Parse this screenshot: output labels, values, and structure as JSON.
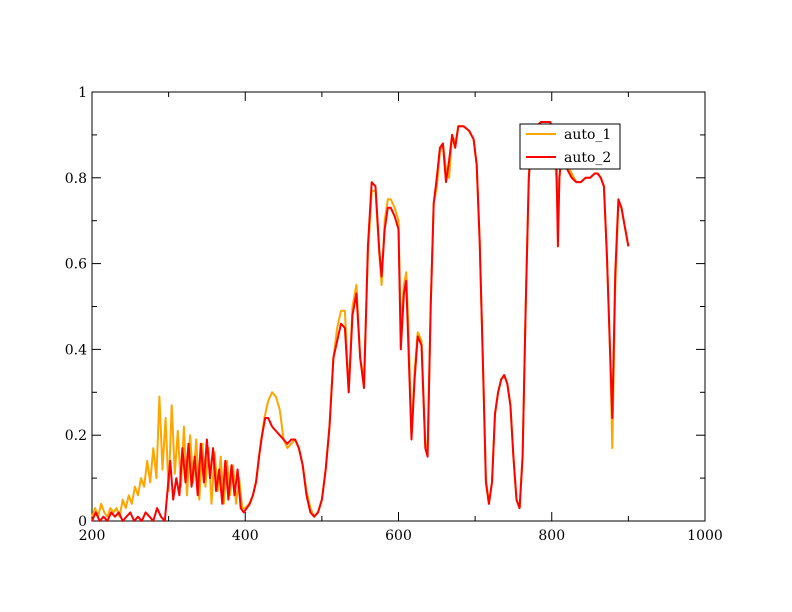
{
  "chart_data": {
    "type": "line",
    "title": "",
    "xlabel": "",
    "ylabel": "",
    "xlim": [
      200,
      1000
    ],
    "ylim": [
      0,
      1
    ],
    "x_ticks": [
      200,
      400,
      600,
      800,
      1000
    ],
    "x_tick_labels": [
      "200",
      "400",
      "600",
      "800",
      "1000"
    ],
    "y_ticks": [
      0,
      0.2,
      0.4,
      0.6,
      0.8,
      1
    ],
    "y_tick_labels": [
      "0",
      "0.2",
      "0.4",
      "0.6",
      "0.8",
      "1"
    ],
    "grid": false,
    "legend_position": "top-right",
    "series": [
      {
        "name": "auto_1",
        "color": "#ffa500",
        "points": [
          [
            200,
            0.01
          ],
          [
            204,
            0.03
          ],
          [
            208,
            0.01
          ],
          [
            212,
            0.04
          ],
          [
            216,
            0.02
          ],
          [
            220,
            0.01
          ],
          [
            224,
            0.03
          ],
          [
            228,
            0.02
          ],
          [
            232,
            0.03
          ],
          [
            236,
            0.01
          ],
          [
            240,
            0.05
          ],
          [
            244,
            0.03
          ],
          [
            248,
            0.06
          ],
          [
            252,
            0.04
          ],
          [
            256,
            0.08
          ],
          [
            260,
            0.06
          ],
          [
            264,
            0.1
          ],
          [
            268,
            0.08
          ],
          [
            272,
            0.14
          ],
          [
            276,
            0.09
          ],
          [
            280,
            0.17
          ],
          [
            284,
            0.1
          ],
          [
            288,
            0.29
          ],
          [
            292,
            0.12
          ],
          [
            296,
            0.24
          ],
          [
            300,
            0.07
          ],
          [
            304,
            0.27
          ],
          [
            308,
            0.11
          ],
          [
            312,
            0.21
          ],
          [
            316,
            0.08
          ],
          [
            320,
            0.22
          ],
          [
            324,
            0.06
          ],
          [
            328,
            0.2
          ],
          [
            332,
            0.09
          ],
          [
            336,
            0.19
          ],
          [
            340,
            0.05
          ],
          [
            344,
            0.18
          ],
          [
            348,
            0.08
          ],
          [
            352,
            0.17
          ],
          [
            356,
            0.04
          ],
          [
            360,
            0.16
          ],
          [
            364,
            0.07
          ],
          [
            368,
            0.15
          ],
          [
            372,
            0.04
          ],
          [
            376,
            0.14
          ],
          [
            380,
            0.06
          ],
          [
            384,
            0.13
          ],
          [
            388,
            0.04
          ],
          [
            392,
            0.1
          ],
          [
            396,
            0.03
          ],
          [
            400,
            0.03
          ],
          [
            405,
            0.04
          ],
          [
            410,
            0.06
          ],
          [
            415,
            0.1
          ],
          [
            420,
            0.18
          ],
          [
            425,
            0.24
          ],
          [
            430,
            0.28
          ],
          [
            435,
            0.3
          ],
          [
            440,
            0.29
          ],
          [
            445,
            0.26
          ],
          [
            450,
            0.19
          ],
          [
            455,
            0.17
          ],
          [
            460,
            0.18
          ],
          [
            465,
            0.19
          ],
          [
            470,
            0.17
          ],
          [
            475,
            0.13
          ],
          [
            480,
            0.07
          ],
          [
            485,
            0.03
          ],
          [
            490,
            0.01
          ],
          [
            495,
            0.02
          ],
          [
            500,
            0.05
          ],
          [
            505,
            0.12
          ],
          [
            510,
            0.22
          ],
          [
            515,
            0.38
          ],
          [
            520,
            0.45
          ],
          [
            525,
            0.49
          ],
          [
            530,
            0.49
          ],
          [
            535,
            0.3
          ],
          [
            540,
            0.5
          ],
          [
            545,
            0.55
          ],
          [
            550,
            0.38
          ],
          [
            555,
            0.33
          ],
          [
            560,
            0.62
          ],
          [
            565,
            0.77
          ],
          [
            570,
            0.77
          ],
          [
            575,
            0.62
          ],
          [
            578,
            0.55
          ],
          [
            582,
            0.7
          ],
          [
            586,
            0.75
          ],
          [
            590,
            0.75
          ],
          [
            595,
            0.73
          ],
          [
            600,
            0.7
          ],
          [
            603,
            0.44
          ],
          [
            607,
            0.55
          ],
          [
            610,
            0.58
          ],
          [
            613,
            0.44
          ],
          [
            617,
            0.2
          ],
          [
            621,
            0.35
          ],
          [
            625,
            0.44
          ],
          [
            630,
            0.42
          ],
          [
            635,
            0.18
          ],
          [
            638,
            0.17
          ],
          [
            642,
            0.5
          ],
          [
            646,
            0.74
          ],
          [
            650,
            0.78
          ],
          [
            654,
            0.86
          ],
          [
            658,
            0.88
          ],
          [
            662,
            0.82
          ],
          [
            666,
            0.8
          ],
          [
            670,
            0.9
          ],
          [
            674,
            0.88
          ],
          [
            678,
            0.92
          ],
          [
            685,
            0.92
          ],
          [
            692,
            0.91
          ],
          [
            698,
            0.89
          ],
          [
            702,
            0.83
          ],
          [
            706,
            0.65
          ],
          [
            710,
            0.38
          ],
          [
            714,
            0.1
          ],
          [
            718,
            0.04
          ],
          [
            722,
            0.09
          ],
          [
            726,
            0.25
          ],
          [
            730,
            0.3
          ],
          [
            734,
            0.33
          ],
          [
            738,
            0.34
          ],
          [
            742,
            0.32
          ],
          [
            746,
            0.27
          ],
          [
            750,
            0.15
          ],
          [
            754,
            0.05
          ],
          [
            758,
            0.03
          ],
          [
            762,
            0.15
          ],
          [
            766,
            0.5
          ],
          [
            770,
            0.8
          ],
          [
            774,
            0.9
          ],
          [
            780,
            0.92
          ],
          [
            786,
            0.93
          ],
          [
            792,
            0.93
          ],
          [
            798,
            0.93
          ],
          [
            802,
            0.9
          ],
          [
            806,
            0.8
          ],
          [
            808,
            0.7
          ],
          [
            810,
            0.8
          ],
          [
            814,
            0.88
          ],
          [
            820,
            0.83
          ],
          [
            826,
            0.81
          ],
          [
            832,
            0.79
          ],
          [
            838,
            0.79
          ],
          [
            844,
            0.8
          ],
          [
            850,
            0.8
          ],
          [
            856,
            0.81
          ],
          [
            860,
            0.81
          ],
          [
            864,
            0.8
          ],
          [
            868,
            0.78
          ],
          [
            872,
            0.62
          ],
          [
            876,
            0.4
          ],
          [
            879,
            0.17
          ],
          [
            883,
            0.55
          ],
          [
            887,
            0.74
          ],
          [
            891,
            0.73
          ],
          [
            895,
            0.69
          ],
          [
            900,
            0.64
          ]
        ]
      },
      {
        "name": "auto_2",
        "color": "#ff0000",
        "points": [
          [
            200,
            0.0
          ],
          [
            205,
            0.02
          ],
          [
            210,
            0.0
          ],
          [
            215,
            0.01
          ],
          [
            220,
            0.0
          ],
          [
            225,
            0.02
          ],
          [
            230,
            0.01
          ],
          [
            235,
            0.02
          ],
          [
            240,
            0.0
          ],
          [
            245,
            0.01
          ],
          [
            250,
            0.02
          ],
          [
            255,
            0.0
          ],
          [
            260,
            0.01
          ],
          [
            265,
            0.0
          ],
          [
            270,
            0.02
          ],
          [
            275,
            0.01
          ],
          [
            280,
            0.0
          ],
          [
            285,
            0.03
          ],
          [
            290,
            0.01
          ],
          [
            295,
            0.0
          ],
          [
            298,
            0.06
          ],
          [
            302,
            0.14
          ],
          [
            306,
            0.05
          ],
          [
            310,
            0.1
          ],
          [
            314,
            0.06
          ],
          [
            318,
            0.17
          ],
          [
            322,
            0.09
          ],
          [
            326,
            0.18
          ],
          [
            330,
            0.08
          ],
          [
            334,
            0.15
          ],
          [
            338,
            0.06
          ],
          [
            342,
            0.18
          ],
          [
            346,
            0.09
          ],
          [
            350,
            0.19
          ],
          [
            354,
            0.1
          ],
          [
            358,
            0.17
          ],
          [
            362,
            0.07
          ],
          [
            366,
            0.12
          ],
          [
            370,
            0.04
          ],
          [
            374,
            0.14
          ],
          [
            378,
            0.05
          ],
          [
            382,
            0.13
          ],
          [
            386,
            0.06
          ],
          [
            390,
            0.12
          ],
          [
            394,
            0.03
          ],
          [
            398,
            0.02
          ],
          [
            402,
            0.03
          ],
          [
            406,
            0.04
          ],
          [
            410,
            0.06
          ],
          [
            414,
            0.09
          ],
          [
            418,
            0.15
          ],
          [
            422,
            0.2
          ],
          [
            426,
            0.24
          ],
          [
            430,
            0.24
          ],
          [
            435,
            0.22
          ],
          [
            440,
            0.21
          ],
          [
            445,
            0.2
          ],
          [
            450,
            0.19
          ],
          [
            455,
            0.18
          ],
          [
            460,
            0.19
          ],
          [
            465,
            0.19
          ],
          [
            470,
            0.17
          ],
          [
            475,
            0.13
          ],
          [
            480,
            0.06
          ],
          [
            485,
            0.02
          ],
          [
            490,
            0.01
          ],
          [
            495,
            0.02
          ],
          [
            500,
            0.05
          ],
          [
            505,
            0.12
          ],
          [
            510,
            0.22
          ],
          [
            515,
            0.38
          ],
          [
            520,
            0.42
          ],
          [
            525,
            0.46
          ],
          [
            530,
            0.45
          ],
          [
            535,
            0.3
          ],
          [
            540,
            0.48
          ],
          [
            545,
            0.53
          ],
          [
            550,
            0.38
          ],
          [
            555,
            0.31
          ],
          [
            560,
            0.64
          ],
          [
            565,
            0.79
          ],
          [
            570,
            0.78
          ],
          [
            575,
            0.63
          ],
          [
            578,
            0.57
          ],
          [
            582,
            0.68
          ],
          [
            586,
            0.73
          ],
          [
            590,
            0.73
          ],
          [
            595,
            0.71
          ],
          [
            600,
            0.68
          ],
          [
            603,
            0.4
          ],
          [
            607,
            0.53
          ],
          [
            610,
            0.56
          ],
          [
            613,
            0.4
          ],
          [
            617,
            0.19
          ],
          [
            621,
            0.33
          ],
          [
            625,
            0.43
          ],
          [
            630,
            0.41
          ],
          [
            635,
            0.17
          ],
          [
            638,
            0.15
          ],
          [
            642,
            0.5
          ],
          [
            646,
            0.74
          ],
          [
            650,
            0.8
          ],
          [
            654,
            0.87
          ],
          [
            658,
            0.88
          ],
          [
            662,
            0.79
          ],
          [
            666,
            0.84
          ],
          [
            670,
            0.9
          ],
          [
            674,
            0.87
          ],
          [
            678,
            0.92
          ],
          [
            685,
            0.92
          ],
          [
            692,
            0.91
          ],
          [
            698,
            0.89
          ],
          [
            702,
            0.83
          ],
          [
            706,
            0.65
          ],
          [
            710,
            0.38
          ],
          [
            714,
            0.09
          ],
          [
            718,
            0.04
          ],
          [
            722,
            0.09
          ],
          [
            726,
            0.25
          ],
          [
            730,
            0.3
          ],
          [
            734,
            0.33
          ],
          [
            738,
            0.34
          ],
          [
            742,
            0.32
          ],
          [
            746,
            0.27
          ],
          [
            750,
            0.15
          ],
          [
            754,
            0.05
          ],
          [
            758,
            0.03
          ],
          [
            762,
            0.15
          ],
          [
            766,
            0.5
          ],
          [
            770,
            0.8
          ],
          [
            774,
            0.9
          ],
          [
            780,
            0.92
          ],
          [
            786,
            0.93
          ],
          [
            792,
            0.93
          ],
          [
            798,
            0.93
          ],
          [
            802,
            0.91
          ],
          [
            806,
            0.85
          ],
          [
            808,
            0.64
          ],
          [
            810,
            0.8
          ],
          [
            814,
            0.88
          ],
          [
            820,
            0.82
          ],
          [
            826,
            0.8
          ],
          [
            832,
            0.79
          ],
          [
            838,
            0.79
          ],
          [
            844,
            0.8
          ],
          [
            850,
            0.8
          ],
          [
            856,
            0.81
          ],
          [
            860,
            0.81
          ],
          [
            864,
            0.8
          ],
          [
            868,
            0.78
          ],
          [
            872,
            0.62
          ],
          [
            876,
            0.4
          ],
          [
            879,
            0.24
          ],
          [
            883,
            0.58
          ],
          [
            887,
            0.75
          ],
          [
            891,
            0.73
          ],
          [
            895,
            0.69
          ],
          [
            900,
            0.64
          ]
        ]
      }
    ]
  }
}
